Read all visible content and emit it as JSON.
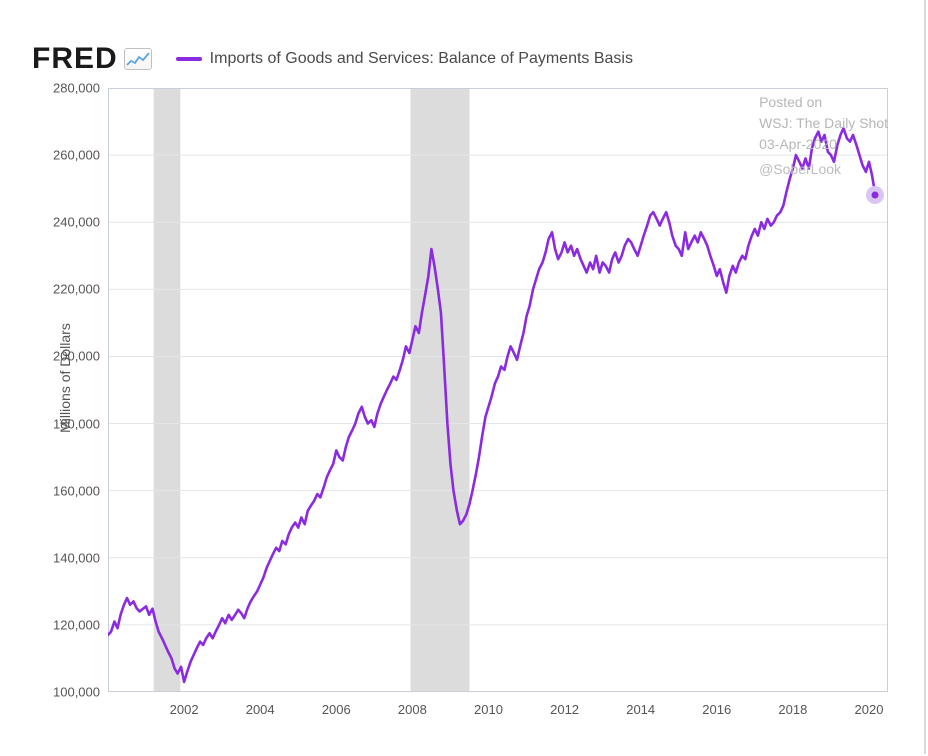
{
  "brand": {
    "name": "FRED",
    "icon_line_color": "#5aa5e0"
  },
  "legend": {
    "series_label": "Imports of Goods and Services: Balance of Payments Basis",
    "swatch_color": "#8a2be2"
  },
  "watermark": {
    "line1": "Posted on",
    "line2": "WSJ: The Daily Shot",
    "line3": "03-Apr-2020",
    "handle": "@SoberLook",
    "color": "#b6b6b6"
  },
  "chart": {
    "type": "line",
    "background_color": "#ffffff",
    "plot_border_color": "#c9cfd6",
    "grid_color": "#e2e6ea",
    "axis_font_size": 13,
    "axis_text_color": "#555555",
    "y_axis": {
      "label": "Millions of Dollars",
      "min": 100000,
      "max": 280000,
      "ticks": [
        100000,
        120000,
        140000,
        160000,
        180000,
        200000,
        220000,
        240000,
        260000,
        280000
      ]
    },
    "x_axis": {
      "min": 2000.0,
      "max": 2020.5,
      "ticks": [
        2002,
        2004,
        2006,
        2008,
        2010,
        2012,
        2014,
        2016,
        2018,
        2020
      ]
    },
    "recession_bands": {
      "fill": "#dcdcdc",
      "ranges": [
        {
          "start": 2001.2,
          "end": 2001.9
        },
        {
          "start": 2007.95,
          "end": 2009.5
        }
      ]
    },
    "series": {
      "color": "#8a2be2",
      "line_width": 2.6,
      "end_marker": {
        "halo_color": "#d9c6f4",
        "dot_color": "#8a2be2",
        "halo_radius": 9,
        "dot_radius": 3.5
      },
      "points": [
        [
          2000.0,
          117000
        ],
        [
          2000.08,
          118000
        ],
        [
          2000.17,
          121000
        ],
        [
          2000.25,
          119000
        ],
        [
          2000.33,
          123000
        ],
        [
          2000.42,
          126000
        ],
        [
          2000.5,
          128000
        ],
        [
          2000.58,
          126000
        ],
        [
          2000.67,
          127000
        ],
        [
          2000.75,
          125000
        ],
        [
          2000.83,
          124000
        ],
        [
          2000.92,
          124800
        ],
        [
          2001.0,
          125500
        ],
        [
          2001.08,
          123000
        ],
        [
          2001.17,
          124800
        ],
        [
          2001.25,
          121000
        ],
        [
          2001.33,
          118000
        ],
        [
          2001.42,
          116000
        ],
        [
          2001.5,
          114000
        ],
        [
          2001.58,
          112000
        ],
        [
          2001.67,
          110000
        ],
        [
          2001.75,
          107000
        ],
        [
          2001.83,
          105500
        ],
        [
          2001.92,
          107500
        ],
        [
          2002.0,
          103000
        ],
        [
          2002.08,
          106000
        ],
        [
          2002.17,
          109000
        ],
        [
          2002.25,
          111000
        ],
        [
          2002.33,
          113000
        ],
        [
          2002.42,
          115000
        ],
        [
          2002.5,
          114000
        ],
        [
          2002.58,
          116000
        ],
        [
          2002.67,
          117500
        ],
        [
          2002.75,
          116000
        ],
        [
          2002.83,
          118000
        ],
        [
          2002.92,
          120000
        ],
        [
          2003.0,
          122000
        ],
        [
          2003.08,
          120500
        ],
        [
          2003.17,
          123000
        ],
        [
          2003.25,
          121500
        ],
        [
          2003.33,
          122800
        ],
        [
          2003.42,
          124500
        ],
        [
          2003.5,
          123500
        ],
        [
          2003.58,
          122000
        ],
        [
          2003.67,
          125000
        ],
        [
          2003.75,
          127000
        ],
        [
          2003.83,
          128500
        ],
        [
          2003.92,
          130000
        ],
        [
          2004.0,
          132000
        ],
        [
          2004.08,
          134000
        ],
        [
          2004.17,
          137000
        ],
        [
          2004.25,
          139000
        ],
        [
          2004.33,
          141000
        ],
        [
          2004.42,
          143000
        ],
        [
          2004.5,
          142000
        ],
        [
          2004.58,
          145000
        ],
        [
          2004.67,
          144000
        ],
        [
          2004.75,
          147000
        ],
        [
          2004.83,
          149000
        ],
        [
          2004.92,
          150500
        ],
        [
          2005.0,
          149000
        ],
        [
          2005.08,
          152000
        ],
        [
          2005.17,
          150000
        ],
        [
          2005.25,
          154000
        ],
        [
          2005.33,
          155500
        ],
        [
          2005.42,
          157000
        ],
        [
          2005.5,
          159000
        ],
        [
          2005.58,
          158000
        ],
        [
          2005.67,
          161000
        ],
        [
          2005.75,
          164000
        ],
        [
          2005.83,
          166000
        ],
        [
          2005.92,
          168000
        ],
        [
          2006.0,
          172000
        ],
        [
          2006.08,
          170000
        ],
        [
          2006.17,
          169000
        ],
        [
          2006.25,
          173000
        ],
        [
          2006.33,
          176000
        ],
        [
          2006.42,
          178000
        ],
        [
          2006.5,
          180000
        ],
        [
          2006.58,
          183000
        ],
        [
          2006.67,
          185000
        ],
        [
          2006.75,
          182000
        ],
        [
          2006.83,
          180000
        ],
        [
          2006.92,
          181000
        ],
        [
          2007.0,
          179000
        ],
        [
          2007.08,
          183000
        ],
        [
          2007.17,
          186000
        ],
        [
          2007.25,
          188000
        ],
        [
          2007.33,
          190000
        ],
        [
          2007.42,
          192000
        ],
        [
          2007.5,
          194000
        ],
        [
          2007.58,
          193000
        ],
        [
          2007.67,
          196000
        ],
        [
          2007.75,
          199000
        ],
        [
          2007.83,
          203000
        ],
        [
          2007.92,
          201000
        ],
        [
          2008.0,
          205000
        ],
        [
          2008.08,
          209000
        ],
        [
          2008.17,
          207000
        ],
        [
          2008.25,
          213000
        ],
        [
          2008.33,
          218000
        ],
        [
          2008.42,
          224000
        ],
        [
          2008.5,
          232000
        ],
        [
          2008.58,
          227000
        ],
        [
          2008.67,
          220000
        ],
        [
          2008.75,
          213000
        ],
        [
          2008.83,
          198000
        ],
        [
          2008.92,
          180000
        ],
        [
          2009.0,
          168000
        ],
        [
          2009.08,
          160000
        ],
        [
          2009.17,
          154000
        ],
        [
          2009.25,
          150000
        ],
        [
          2009.33,
          151000
        ],
        [
          2009.42,
          153000
        ],
        [
          2009.5,
          156000
        ],
        [
          2009.58,
          160000
        ],
        [
          2009.67,
          165000
        ],
        [
          2009.75,
          170000
        ],
        [
          2009.83,
          176000
        ],
        [
          2009.92,
          182000
        ],
        [
          2010.0,
          185000
        ],
        [
          2010.08,
          188000
        ],
        [
          2010.17,
          192000
        ],
        [
          2010.25,
          194000
        ],
        [
          2010.33,
          197000
        ],
        [
          2010.42,
          196000
        ],
        [
          2010.5,
          200000
        ],
        [
          2010.58,
          203000
        ],
        [
          2010.67,
          201000
        ],
        [
          2010.75,
          199000
        ],
        [
          2010.83,
          203000
        ],
        [
          2010.92,
          207000
        ],
        [
          2011.0,
          212000
        ],
        [
          2011.08,
          215000
        ],
        [
          2011.17,
          220000
        ],
        [
          2011.25,
          223000
        ],
        [
          2011.33,
          226000
        ],
        [
          2011.42,
          228000
        ],
        [
          2011.5,
          231000
        ],
        [
          2011.58,
          235000
        ],
        [
          2011.67,
          237000
        ],
        [
          2011.75,
          232000
        ],
        [
          2011.83,
          229000
        ],
        [
          2011.92,
          231000
        ],
        [
          2012.0,
          234000
        ],
        [
          2012.08,
          231000
        ],
        [
          2012.17,
          233000
        ],
        [
          2012.25,
          230000
        ],
        [
          2012.33,
          232000
        ],
        [
          2012.42,
          229000
        ],
        [
          2012.5,
          227000
        ],
        [
          2012.58,
          225000
        ],
        [
          2012.67,
          228000
        ],
        [
          2012.75,
          226000
        ],
        [
          2012.83,
          230000
        ],
        [
          2012.92,
          225000
        ],
        [
          2013.0,
          228000
        ],
        [
          2013.08,
          227000
        ],
        [
          2013.17,
          225000
        ],
        [
          2013.25,
          229000
        ],
        [
          2013.33,
          231000
        ],
        [
          2013.42,
          228000
        ],
        [
          2013.5,
          230000
        ],
        [
          2013.58,
          233000
        ],
        [
          2013.67,
          235000
        ],
        [
          2013.75,
          234000
        ],
        [
          2013.83,
          232000
        ],
        [
          2013.92,
          230000
        ],
        [
          2014.0,
          233000
        ],
        [
          2014.08,
          236000
        ],
        [
          2014.17,
          239000
        ],
        [
          2014.25,
          242000
        ],
        [
          2014.33,
          243000
        ],
        [
          2014.42,
          241000
        ],
        [
          2014.5,
          239000
        ],
        [
          2014.58,
          241000
        ],
        [
          2014.67,
          243000
        ],
        [
          2014.75,
          240000
        ],
        [
          2014.83,
          236000
        ],
        [
          2014.92,
          233000
        ],
        [
          2015.0,
          232000
        ],
        [
          2015.08,
          230000
        ],
        [
          2015.17,
          237000
        ],
        [
          2015.25,
          232000
        ],
        [
          2015.33,
          234000
        ],
        [
          2015.42,
          236000
        ],
        [
          2015.5,
          234000
        ],
        [
          2015.58,
          237000
        ],
        [
          2015.67,
          235000
        ],
        [
          2015.75,
          233000
        ],
        [
          2015.83,
          230000
        ],
        [
          2015.92,
          227000
        ],
        [
          2016.0,
          224000
        ],
        [
          2016.08,
          226000
        ],
        [
          2016.17,
          222000
        ],
        [
          2016.25,
          219000
        ],
        [
          2016.33,
          224000
        ],
        [
          2016.42,
          227000
        ],
        [
          2016.5,
          225000
        ],
        [
          2016.58,
          228000
        ],
        [
          2016.67,
          230000
        ],
        [
          2016.75,
          229000
        ],
        [
          2016.83,
          233000
        ],
        [
          2016.92,
          236000
        ],
        [
          2017.0,
          238000
        ],
        [
          2017.08,
          236000
        ],
        [
          2017.17,
          240000
        ],
        [
          2017.25,
          238000
        ],
        [
          2017.33,
          241000
        ],
        [
          2017.42,
          239000
        ],
        [
          2017.5,
          240000
        ],
        [
          2017.58,
          242000
        ],
        [
          2017.67,
          243000
        ],
        [
          2017.75,
          245000
        ],
        [
          2017.83,
          249000
        ],
        [
          2017.92,
          253000
        ],
        [
          2018.0,
          256000
        ],
        [
          2018.08,
          260000
        ],
        [
          2018.17,
          258000
        ],
        [
          2018.25,
          256000
        ],
        [
          2018.33,
          259000
        ],
        [
          2018.42,
          256000
        ],
        [
          2018.5,
          262000
        ],
        [
          2018.58,
          265000
        ],
        [
          2018.67,
          267000
        ],
        [
          2018.75,
          264000
        ],
        [
          2018.83,
          266000
        ],
        [
          2018.92,
          261000
        ],
        [
          2019.0,
          260000
        ],
        [
          2019.08,
          258000
        ],
        [
          2019.17,
          263000
        ],
        [
          2019.25,
          266000
        ],
        [
          2019.33,
          268000
        ],
        [
          2019.42,
          265000
        ],
        [
          2019.5,
          264000
        ],
        [
          2019.58,
          266000
        ],
        [
          2019.67,
          263000
        ],
        [
          2019.75,
          260000
        ],
        [
          2019.83,
          257000
        ],
        [
          2019.92,
          255000
        ],
        [
          2020.0,
          258000
        ],
        [
          2020.08,
          254000
        ],
        [
          2020.17,
          248000
        ]
      ]
    }
  }
}
